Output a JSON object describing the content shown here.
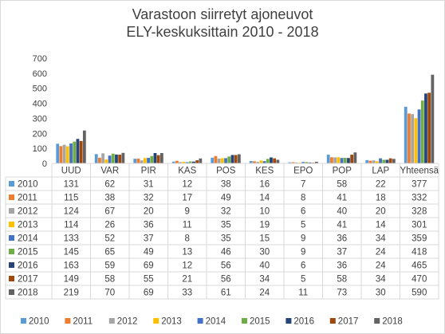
{
  "chart_data": {
    "type": "bar",
    "title_line1": "Varastoon siirretyt ajoneuvot",
    "title_line2": "ELY-keskuksittain 2010 - 2018",
    "categories": [
      "UUD",
      "VAR",
      "PIR",
      "KAS",
      "POS",
      "KES",
      "EPO",
      "POP",
      "LAP",
      "Yhteensä"
    ],
    "ylim": [
      0,
      700
    ],
    "yticks": [
      0,
      100,
      200,
      300,
      400,
      500,
      600,
      700
    ],
    "grid": false,
    "legend_position": "bottom",
    "data_table": true,
    "series": [
      {
        "name": "2010",
        "color": "#5b9bd5",
        "values": [
          131,
          62,
          31,
          12,
          38,
          16,
          7,
          58,
          22,
          377
        ]
      },
      {
        "name": "2011",
        "color": "#ed7d31",
        "values": [
          115,
          38,
          32,
          17,
          49,
          14,
          8,
          41,
          18,
          332
        ]
      },
      {
        "name": "2012",
        "color": "#a5a5a5",
        "values": [
          124,
          67,
          20,
          9,
          32,
          10,
          6,
          40,
          20,
          328
        ]
      },
      {
        "name": "2013",
        "color": "#ffc000",
        "values": [
          114,
          26,
          36,
          11,
          35,
          19,
          5,
          41,
          14,
          301
        ]
      },
      {
        "name": "2014",
        "color": "#4472c4",
        "values": [
          133,
          52,
          37,
          8,
          35,
          15,
          9,
          36,
          34,
          359
        ]
      },
      {
        "name": "2015",
        "color": "#70ad47",
        "values": [
          145,
          65,
          49,
          13,
          46,
          30,
          9,
          37,
          24,
          418
        ]
      },
      {
        "name": "2016",
        "color": "#264478",
        "values": [
          163,
          59,
          69,
          12,
          56,
          40,
          6,
          36,
          24,
          465
        ]
      },
      {
        "name": "2017",
        "color": "#9e480e",
        "values": [
          149,
          58,
          55,
          21,
          56,
          34,
          5,
          58,
          34,
          470
        ]
      },
      {
        "name": "2018",
        "color": "#636363",
        "values": [
          219,
          70,
          69,
          33,
          61,
          24,
          11,
          73,
          30,
          590
        ]
      }
    ]
  }
}
